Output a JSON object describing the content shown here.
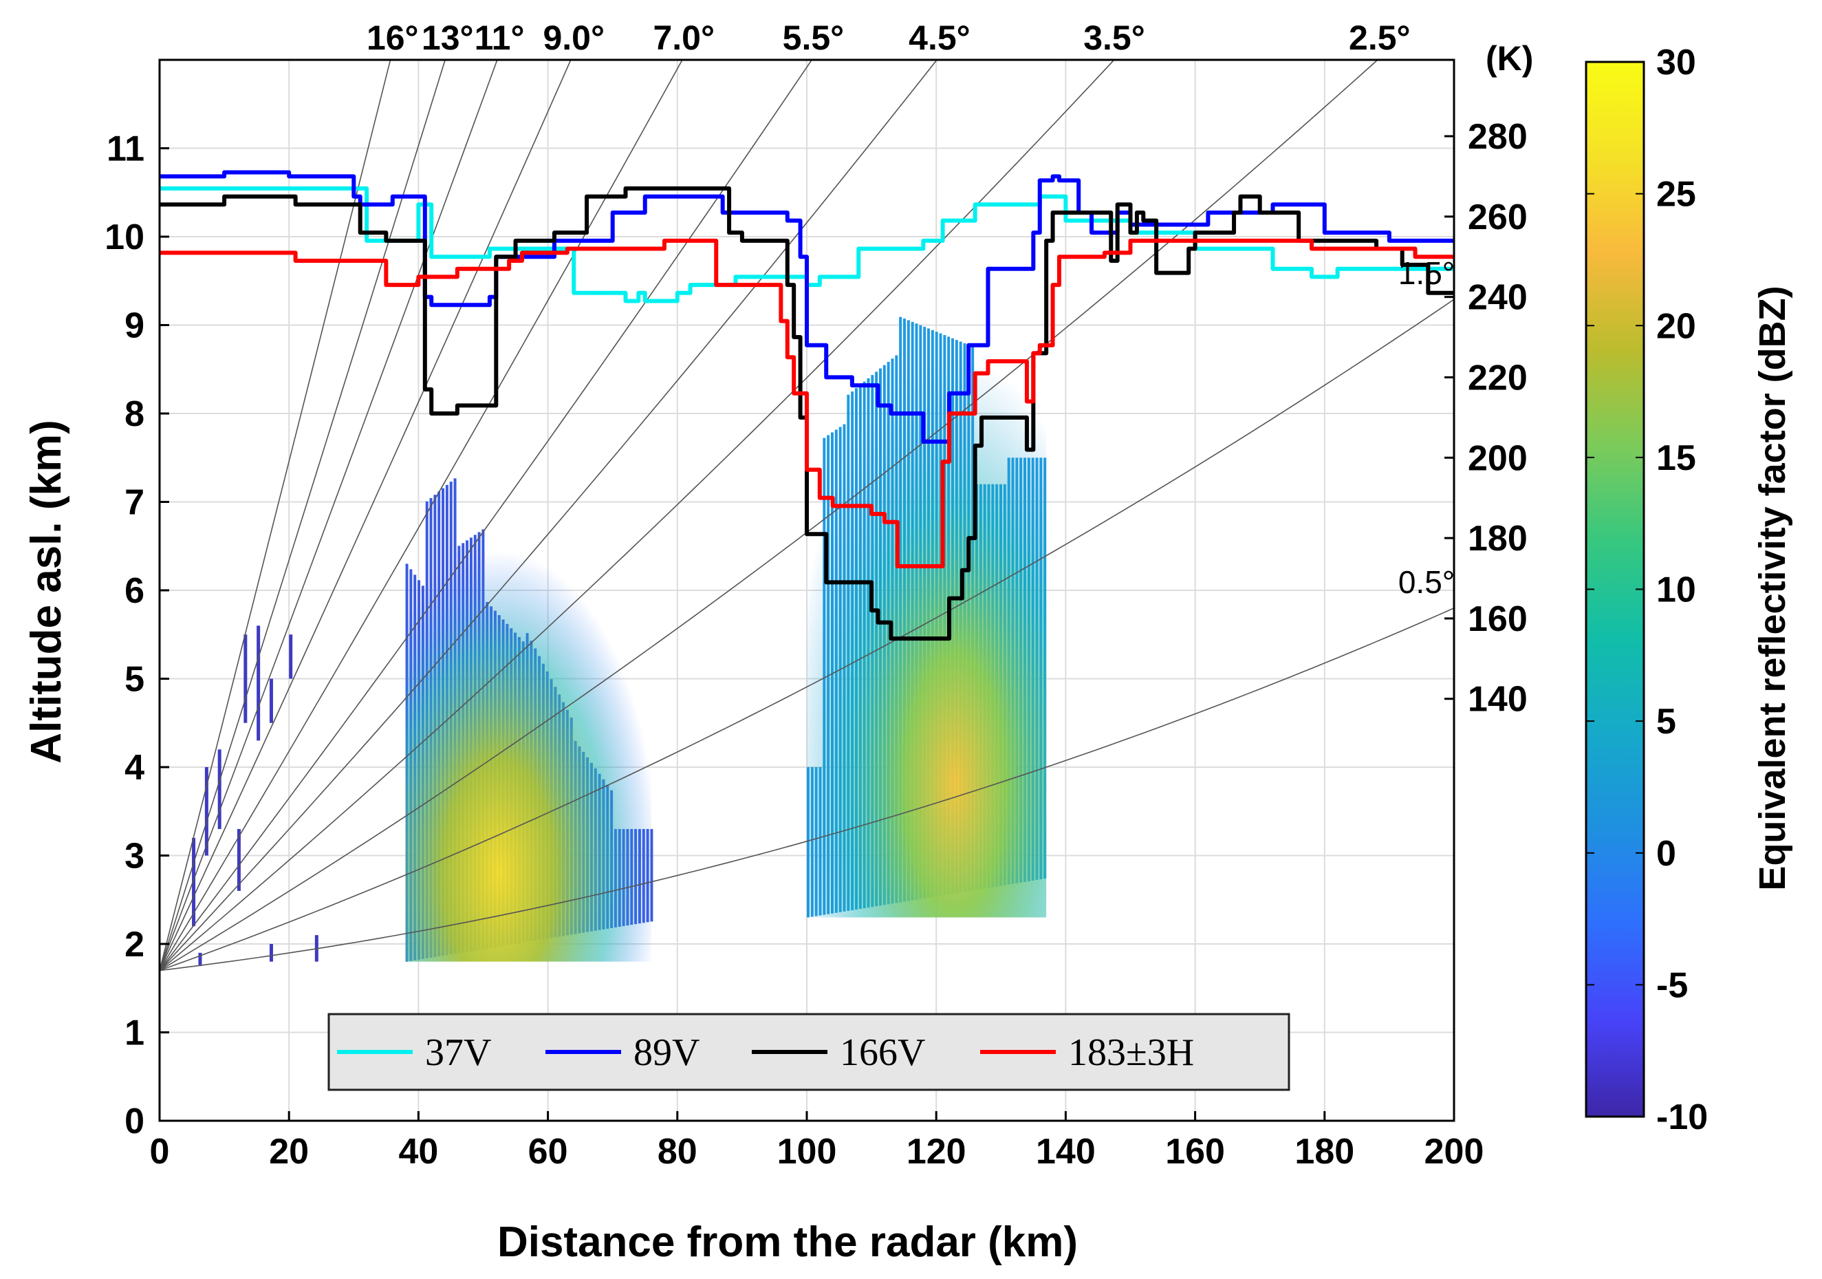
{
  "chart_data": {
    "type": "line",
    "title": "",
    "xlabel": "Distance from the radar (km)",
    "ylabel": "Altitude asl. (km)",
    "ylabel_right": "(K)",
    "colorbar_label": "Equivalent reflectivity factor (dBZ)",
    "xlim": [
      0,
      200
    ],
    "ylim": [
      0,
      12
    ],
    "y2lim": [
      35,
      299
    ],
    "clim": [
      -10,
      30
    ],
    "xticks": [
      0,
      20,
      40,
      60,
      80,
      100,
      120,
      140,
      160,
      180,
      200
    ],
    "yticks": [
      0,
      1,
      2,
      3,
      4,
      5,
      6,
      7,
      8,
      9,
      10,
      11
    ],
    "y2ticks": [
      140,
      160,
      180,
      200,
      220,
      240,
      260,
      280
    ],
    "cticks": [
      -10,
      -5,
      0,
      5,
      10,
      15,
      20,
      25,
      30
    ],
    "grid": true,
    "radar_altitude_km": 1.7,
    "elevation_angles": [
      {
        "label": "16°",
        "deg": 16
      },
      {
        "label": "13°",
        "deg": 13
      },
      {
        "label": "11°",
        "deg": 11
      },
      {
        "label": "9.0°",
        "deg": 9.0
      },
      {
        "label": "7.0°",
        "deg": 7.0
      },
      {
        "label": "5.5°",
        "deg": 5.5
      },
      {
        "label": "4.5°",
        "deg": 4.5
      },
      {
        "label": "3.5°",
        "deg": 3.5
      },
      {
        "label": "2.5°",
        "deg": 2.5
      },
      {
        "label": "1.5°",
        "deg": 1.5
      },
      {
        "label": "0.5°",
        "deg": 0.5
      }
    ],
    "series": [
      {
        "name": "37V",
        "color": "#00f0f0",
        "x": [
          0,
          30,
          32,
          36,
          40,
          42,
          46,
          51,
          52,
          63,
          64,
          70,
          72,
          74,
          75,
          80,
          82,
          88,
          89,
          96,
          100,
          102,
          104,
          108,
          110,
          118,
          121,
          126,
          128,
          136,
          140,
          150,
          160,
          164,
          172,
          174,
          178,
          182,
          188,
          200
        ],
        "y": [
          267,
          267,
          254,
          254,
          263,
          250,
          250,
          252,
          252,
          252,
          241,
          241,
          239,
          241,
          239,
          241,
          243,
          243,
          245,
          245,
          243,
          245,
          245,
          252,
          252,
          254,
          259,
          263,
          263,
          265,
          259,
          256,
          252,
          252,
          247,
          247,
          245,
          247,
          247,
          247
        ]
      },
      {
        "name": "89V",
        "color": "#0000ff",
        "x": [
          0,
          10,
          20,
          22,
          30,
          31,
          35,
          36,
          41,
          42,
          46,
          51,
          52,
          60,
          61,
          70,
          72,
          75,
          86,
          87,
          90,
          95,
          97,
          99,
          100,
          103,
          107,
          110,
          111,
          113,
          118,
          120,
          122,
          125,
          128,
          135,
          136,
          138,
          139,
          142,
          144,
          146,
          148,
          150,
          160,
          162,
          170,
          172,
          180,
          188,
          190,
          200
        ],
        "y": [
          270,
          271,
          270,
          270,
          265,
          263,
          263,
          265,
          240,
          238,
          238,
          240,
          250,
          250,
          254,
          261,
          261,
          265,
          265,
          261,
          261,
          261,
          259,
          250,
          228,
          220,
          218,
          218,
          213,
          211,
          204,
          204,
          216,
          228,
          247,
          256,
          269,
          270,
          269,
          261,
          256,
          256,
          261,
          258,
          258,
          261,
          261,
          263,
          256,
          256,
          254,
          254
        ]
      },
      {
        "name": "166V",
        "color": "#000000",
        "x": [
          0,
          10,
          20,
          21,
          30,
          31,
          35,
          40,
          41,
          42,
          45,
          46,
          51,
          52,
          55,
          60,
          61,
          64,
          66,
          70,
          72,
          75,
          86,
          88,
          90,
          95,
          97,
          98,
          99,
          100,
          103,
          106,
          110,
          111,
          113,
          120,
          122,
          124,
          125,
          126,
          127,
          132,
          133,
          134,
          135,
          137,
          138,
          140,
          146,
          147,
          148,
          150,
          151,
          152,
          154,
          158,
          159,
          160,
          162,
          166,
          167,
          170,
          174,
          176,
          180,
          186,
          188,
          190,
          192,
          196,
          200
        ],
        "y": [
          263,
          265,
          265,
          263,
          263,
          256,
          254,
          254,
          217,
          211,
          211,
          213,
          213,
          250,
          254,
          254,
          256,
          256,
          265,
          265,
          267,
          267,
          267,
          256,
          254,
          254,
          243,
          230,
          210,
          181,
          169,
          169,
          162,
          159,
          155,
          155,
          165,
          172,
          180,
          203,
          210,
          210,
          210,
          202,
          226,
          254,
          261,
          261,
          261,
          249,
          263,
          256,
          261,
          259,
          246,
          246,
          252,
          256,
          256,
          261,
          265,
          261,
          261,
          254,
          254,
          254,
          252,
          252,
          248,
          241,
          241
        ]
      },
      {
        "name": "183±3H",
        "color": "#ff0000",
        "x": [
          0,
          20,
          21,
          30,
          35,
          40,
          45,
          46,
          50,
          54,
          56,
          62,
          63,
          70,
          72,
          78,
          84,
          86,
          89,
          95,
          96,
          97,
          98,
          100,
          101,
          102,
          104,
          109,
          110,
          112,
          114,
          120,
          121,
          122,
          125,
          126,
          128,
          133,
          134,
          135,
          136,
          138,
          139,
          140,
          146,
          148,
          150,
          160,
          176,
          178,
          190,
          194,
          200
        ],
        "y": [
          251,
          251,
          249,
          249,
          243,
          245,
          245,
          247,
          247,
          249,
          251,
          251,
          252,
          252,
          252,
          254,
          254,
          243,
          243,
          243,
          234,
          225,
          216,
          197,
          197,
          190,
          188,
          188,
          186,
          184,
          173,
          173,
          199,
          211,
          211,
          221,
          224,
          224,
          214,
          226,
          228,
          243,
          250,
          250,
          251,
          251,
          254,
          254,
          254,
          252,
          252,
          250,
          250
        ]
      }
    ],
    "reflectivity_clusters": [
      {
        "x_range": [
          38,
          76
        ],
        "base_km": 1.8,
        "note": "first echo cluster, max about 26 dBZ near 48 km"
      },
      {
        "x_range": [
          100,
          137
        ],
        "base_km": 2.3,
        "note": "second echo cluster, max about 25 dBZ near 123 km"
      },
      {
        "x_range": [
          1,
          26
        ],
        "base_km": 1.7,
        "note": "weak near-range echoes"
      }
    ]
  },
  "legend": {
    "items": [
      {
        "label": "37V",
        "color": "#00f0f0"
      },
      {
        "label": "89V",
        "color": "#0000ff"
      },
      {
        "label": "166V",
        "color": "#000000"
      },
      {
        "label": "183±3H",
        "color": "#ff0000"
      }
    ],
    "placement": "bottom-center"
  },
  "colormap": [
    "#3e26a8",
    "#4743f8",
    "#2f6ffd",
    "#1f90e0",
    "#16a9c9",
    "#12bea8",
    "#37c77f",
    "#7ccb5a",
    "#bbbc2e",
    "#f8ba3d",
    "#f5e128",
    "#f9fb15"
  ]
}
